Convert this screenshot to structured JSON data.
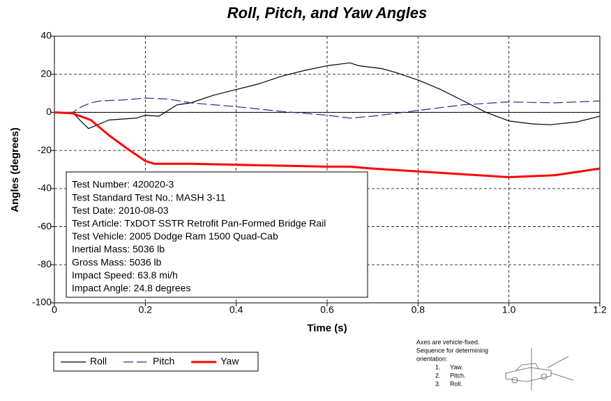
{
  "chart_data": {
    "type": "line",
    "title": "Roll, Pitch, and Yaw Angles",
    "x_label": "Time (s)",
    "y_label": "Angles (degrees)",
    "xlim": [
      0,
      1.2
    ],
    "ylim": [
      -100,
      40
    ],
    "xticks": [
      0,
      0.2,
      0.4,
      0.6,
      0.8,
      {
        "value": 1,
        "label": "1.0"
      },
      1.2
    ],
    "yticks": [
      40,
      20,
      0,
      -20,
      -40,
      -60,
      -80,
      -100
    ],
    "grid": true,
    "legend": "bottom-left",
    "series": [
      {
        "name": "Roll",
        "color": "#000000",
        "linestyle": "solid",
        "linewidth": 1.2,
        "x": [
          0,
          0.04,
          0.06,
          0.075,
          0.09,
          0.12,
          0.15,
          0.18,
          0.2,
          0.23,
          0.27,
          0.3,
          0.35,
          0.4,
          0.45,
          0.5,
          0.55,
          0.6,
          0.65,
          0.67,
          0.72,
          0.75,
          0.8,
          0.85,
          0.9,
          0.95,
          1.0,
          1.05,
          1.09,
          1.15,
          1.2
        ],
        "values": [
          0,
          0,
          -5,
          -8.5,
          -7,
          -4,
          -3.5,
          -3,
          -1.5,
          -2,
          4,
          5,
          9,
          12,
          15,
          19,
          22,
          24.5,
          26,
          24.5,
          23,
          21,
          17,
          12,
          6,
          0,
          -4.5,
          -6,
          -6.5,
          -5,
          -2
        ]
      },
      {
        "name": "Pitch",
        "color": "#2b2b8f",
        "linestyle": "dashed",
        "linewidth": 1.2,
        "x": [
          0,
          0.04,
          0.06,
          0.08,
          0.1,
          0.15,
          0.2,
          0.25,
          0.3,
          0.4,
          0.5,
          0.6,
          0.65,
          0.7,
          0.8,
          0.9,
          1.0,
          1.1,
          1.2
        ],
        "values": [
          0,
          0,
          3,
          5,
          6,
          6.5,
          7.5,
          7,
          5,
          3,
          0.5,
          -1.5,
          -3,
          -2,
          1,
          4,
          5.5,
          5,
          6
        ]
      },
      {
        "name": "Yaw",
        "color": "#ff0000",
        "linestyle": "solid",
        "linewidth": 3,
        "x": [
          0,
          0.04,
          0.08,
          0.12,
          0.16,
          0.2,
          0.22,
          0.3,
          0.4,
          0.5,
          0.6,
          0.65,
          0.7,
          0.8,
          0.9,
          1.0,
          1.1,
          1.2
        ],
        "values": [
          0,
          -0.5,
          -4,
          -12,
          -19,
          -25.5,
          -27,
          -27,
          -27.5,
          -28,
          -28.5,
          -28.5,
          -29.5,
          -31,
          -32.5,
          -34,
          -33,
          -29.5
        ]
      }
    ],
    "info_box": [
      "Test Number: 420020-3",
      "Test Standard Test No.: MASH 3-11",
      "Test Date: 2010-08-03",
      "Test Article: TxDOT SSTR Retrofit Pan-Formed Bridge Rail",
      "Test Vehicle: 2005 Dodge Ram 1500 Quad-Cab",
      "Inertial Mass: 5036 lb",
      "Gross Mass: 5036 lb",
      "Impact Speed: 63.8 mi/h",
      "Impact Angle: 24.8 degrees"
    ],
    "orientation_note": [
      "Axes are vehicle-fixed.",
      "Sequence for determining",
      "orientation:"
    ],
    "orientation_steps": [
      [
        "1.",
        "Yaw."
      ],
      [
        "2.",
        "Pitch."
      ],
      [
        "3.",
        "Roll."
      ]
    ]
  }
}
